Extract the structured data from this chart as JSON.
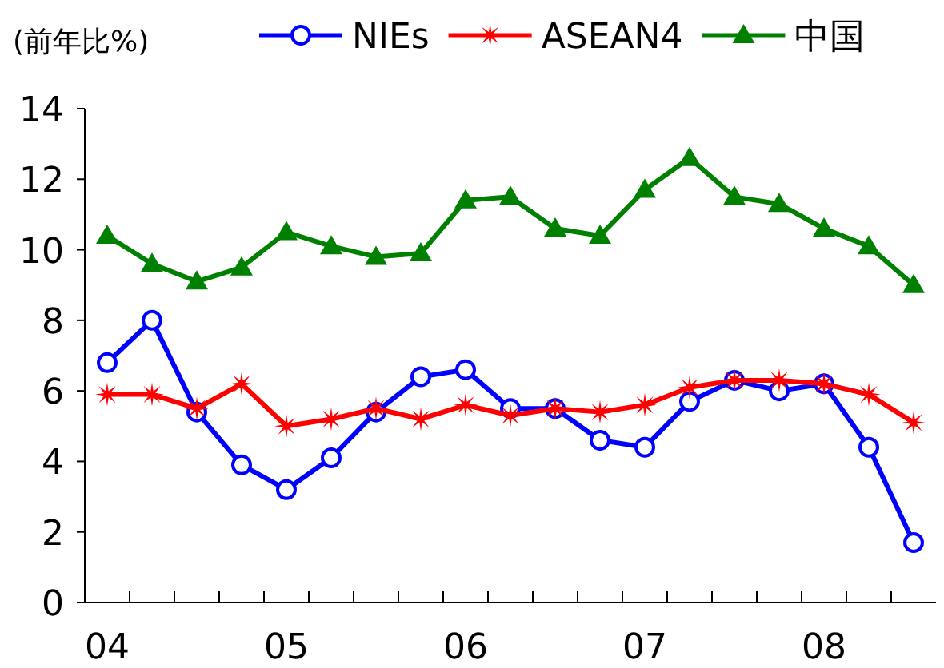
{
  "chart_data": {
    "type": "line",
    "ylabel": "(前年比%)",
    "categories": [
      "04",
      null,
      null,
      null,
      "05",
      null,
      null,
      null,
      "06",
      null,
      null,
      null,
      "07",
      null,
      null,
      null,
      "08",
      null,
      null
    ],
    "ylim": [
      0,
      14
    ],
    "yticks": [
      0,
      2,
      4,
      6,
      8,
      10,
      12,
      14
    ],
    "grid": false,
    "legend": "top",
    "line_style": "solid",
    "series": [
      {
        "name": "NIEs",
        "color": "#0000ff",
        "marker": "circle",
        "values": [
          6.8,
          8.0,
          5.4,
          3.9,
          3.2,
          4.1,
          5.4,
          6.4,
          6.6,
          5.5,
          5.5,
          4.6,
          4.4,
          5.7,
          6.3,
          6.0,
          6.2,
          4.4,
          1.7
        ]
      },
      {
        "name": "ASEAN4",
        "color": "#ff0000",
        "marker": "star",
        "values": [
          5.9,
          5.9,
          5.5,
          6.2,
          5.0,
          5.2,
          5.5,
          5.2,
          5.6,
          5.3,
          5.5,
          5.4,
          5.6,
          6.1,
          6.3,
          6.3,
          6.2,
          5.9,
          5.1
        ]
      },
      {
        "name": "中国",
        "color": "#008000",
        "marker": "triangle",
        "values": [
          10.4,
          9.6,
          9.1,
          9.5,
          10.5,
          10.1,
          9.8,
          9.9,
          11.4,
          11.5,
          10.6,
          10.4,
          11.7,
          12.6,
          11.5,
          11.3,
          10.6,
          10.1,
          9.0
        ]
      }
    ]
  }
}
